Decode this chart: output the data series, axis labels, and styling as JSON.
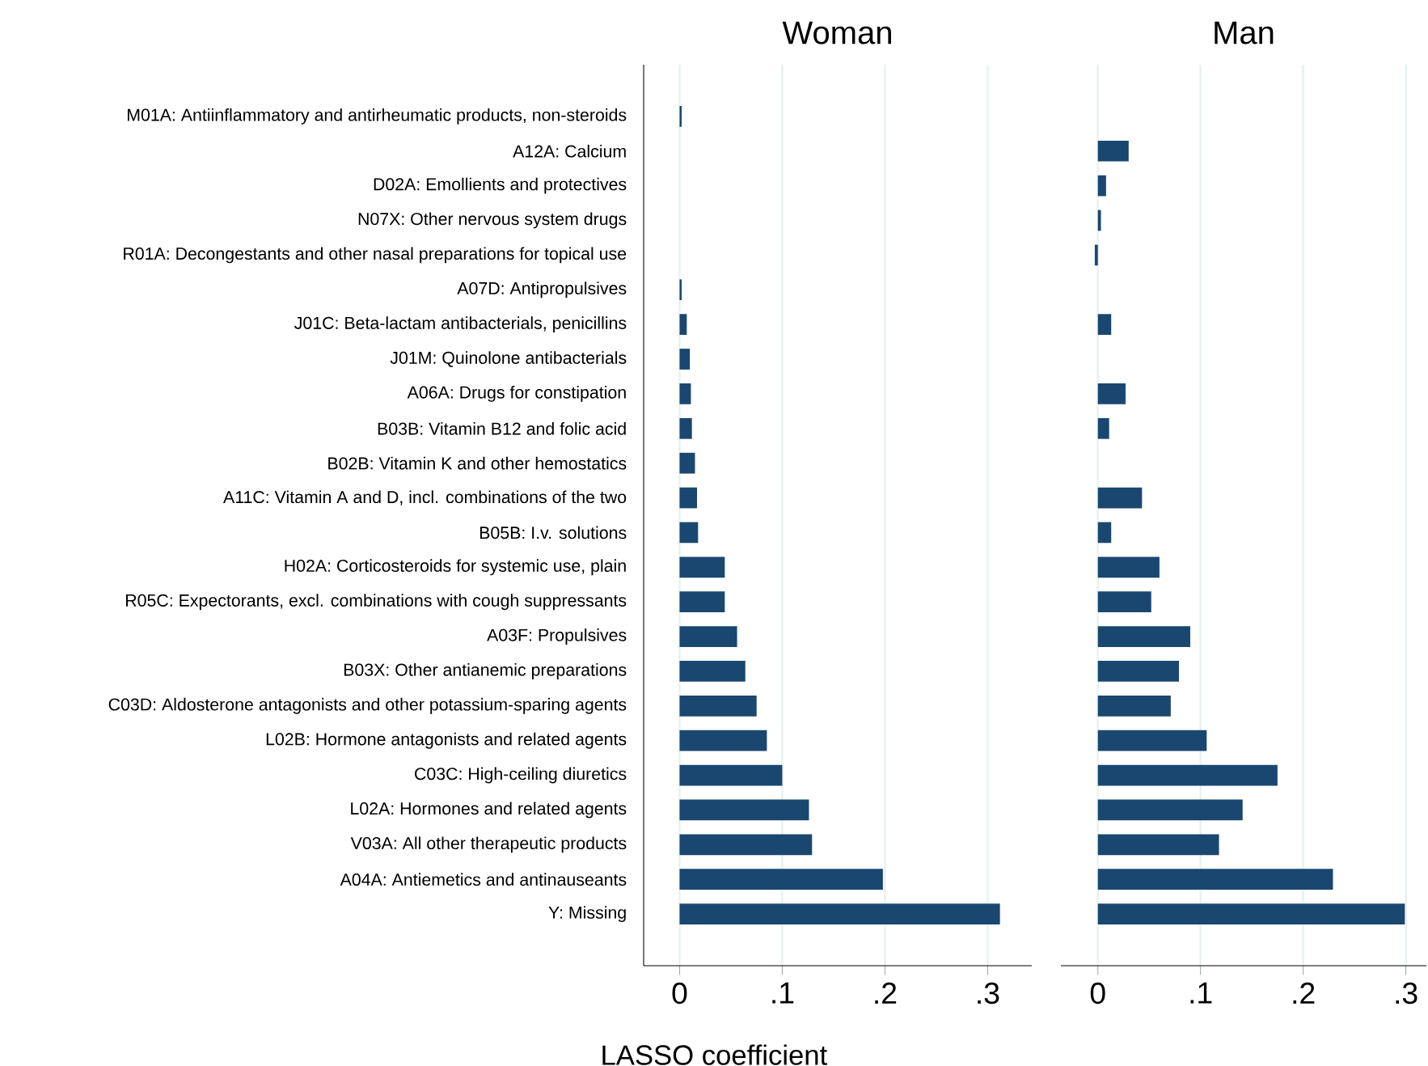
{
  "chart_data": [
    {
      "type": "bar",
      "orientation": "horizontal",
      "title": "Woman",
      "xlabel": "LASSO coefficient",
      "categories": [
        "M01A: Antiinflammatory and antirheumatic products, non-steroids",
        "A12A: Calcium",
        "D02A: Emollients and protectives",
        "N07X: Other nervous system drugs",
        "R01A: Decongestants and other nasal preparations for topical use",
        "A07D: Antipropulsives",
        "J01C: Beta-lactam antibacterials, penicillins",
        "J01M: Quinolone antibacterials",
        "A06A: Drugs for constipation",
        "B03B: Vitamin B12 and folic acid",
        "B02B: Vitamin K and other hemostatics",
        "A11C: Vitamin A and D, incl. combinations of the two",
        "B05B: I.v. solutions",
        "H02A: Corticosteroids for systemic use, plain",
        "R05C: Expectorants, excl. combinations with cough suppressants",
        "A03F: Propulsives",
        "B03X: Other antianemic preparations",
        "C03D: Aldosterone antagonists and other potassium-sparing agents",
        "L02B: Hormone antagonists and related agents",
        "C03C: High-ceiling diuretics",
        "L02A: Hormones and related agents",
        "V03A: All other therapeutic products",
        "A04A: Antiemetics and antinauseants",
        "Y: Missing"
      ],
      "values": [
        0.002,
        null,
        null,
        null,
        null,
        0.002,
        0.007,
        0.01,
        0.011,
        0.012,
        0.015,
        0.017,
        0.018,
        0.044,
        0.044,
        0.056,
        0.064,
        0.075,
        0.085,
        0.1,
        0.126,
        0.129,
        0.198,
        0.312
      ],
      "color": "#1a476f",
      "xlim": [
        -0.035,
        0.343
      ],
      "xticks": [
        0,
        {
          "value": 0.1,
          "label": ".1"
        },
        {
          "value": 0.2,
          "label": ".2"
        },
        {
          "value": 0.3,
          "label": ".3"
        }
      ],
      "grid": "x"
    },
    {
      "type": "bar",
      "orientation": "horizontal",
      "title": "Man",
      "categories": [
        null,
        null,
        null,
        null,
        null,
        null,
        null,
        null,
        null,
        null,
        null,
        null,
        null,
        null,
        null,
        null,
        null,
        null,
        null,
        null,
        null,
        null,
        null,
        null
      ],
      "values": [
        null,
        0.03,
        0.008,
        0.003,
        -0.003,
        null,
        0.013,
        null,
        0.027,
        0.011,
        null,
        0.043,
        0.013,
        0.06,
        0.052,
        0.09,
        0.079,
        0.071,
        0.106,
        0.175,
        0.141,
        0.118,
        0.229,
        0.299
      ],
      "color": "#1a476f",
      "xlim": [
        -0.036,
        0.32
      ],
      "xticks": [
        0,
        {
          "value": 0.1,
          "label": ".1"
        },
        {
          "value": 0.2,
          "label": ".2"
        },
        {
          "value": 0.3,
          "label": ".3"
        }
      ],
      "grid": "x",
      "tick_labels": "x"
    }
  ]
}
